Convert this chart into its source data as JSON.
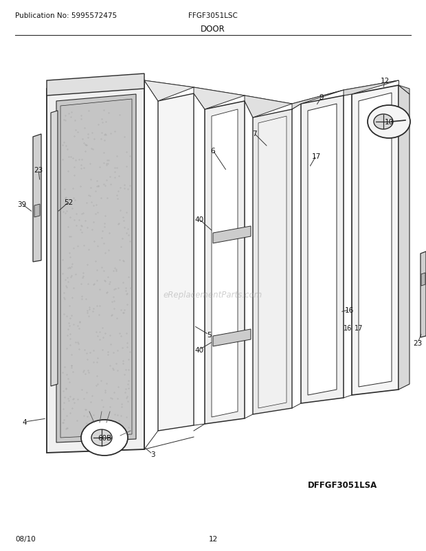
{
  "title": "DOOR",
  "pub_no": "Publication No: 5995572475",
  "model": "FFGF3051LSC",
  "diagram_id": "DFFGF3051LSA",
  "date": "08/10",
  "page": "12",
  "bg_color": "#ffffff",
  "line_color": "#2a2a2a",
  "label_color": "#111111",
  "gray_light": "#e8e8e8",
  "gray_mid": "#d0d0d0",
  "gray_dark": "#b0b0b0",
  "white": "#ffffff",
  "panel_colors": [
    "#f2f2f2",
    "#eeeeee",
    "#e8e8e8",
    "#e4e4e4",
    "#f0f0f0",
    "#ececec"
  ],
  "window_color": "#c8c8c8",
  "watermark": "eReplacementParts.com"
}
